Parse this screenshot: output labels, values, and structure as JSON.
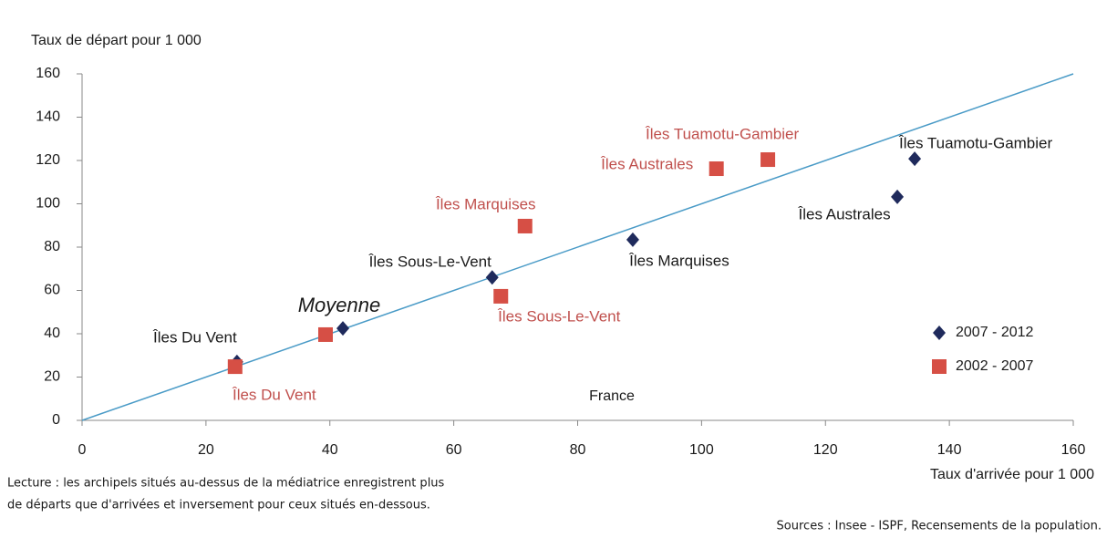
{
  "chart_data": {
    "type": "scatter",
    "title": "Taux de départ pour 1 000",
    "x_label": "Taux d'arrivée pour 1 000",
    "xlim": [
      0,
      160
    ],
    "xticks": [
      0,
      20,
      40,
      60,
      80,
      100,
      120,
      140,
      160
    ],
    "ylim": [
      0,
      160
    ],
    "yticks": [
      0,
      20,
      40,
      60,
      80,
      100,
      120,
      140,
      160
    ],
    "legend": "right",
    "series": [
      {
        "name": "2007 - 2012",
        "color": "#1f2a5c",
        "marker": "diamond",
        "x": [
          25,
          42.1,
          66.2,
          88.9,
          131.6,
          134.4
        ],
        "values": [
          27,
          42.5,
          66,
          83.4,
          103.2,
          120.8
        ],
        "labels": [
          "Îles Du Vent",
          null,
          "Îles Sous-Le-Vent",
          "Îles Marquises",
          "Îles Australes",
          "Îles Tuamotu-Gambier"
        ]
      },
      {
        "name": "2002 - 2007",
        "color": "#d64f45",
        "marker": "square",
        "x": [
          24.7,
          39.3,
          67.6,
          71.5,
          102.4,
          110.7
        ],
        "values": [
          24.8,
          39.6,
          57.3,
          89.7,
          116.2,
          120.4
        ],
        "labels": [
          "Îles Du Vent",
          null,
          "Îles Sous-Le-Vent",
          "Îles Marquises",
          "Îles Australes",
          "Îles Tuamotu-Gambier"
        ]
      }
    ],
    "annotations": [
      "Moyenne",
      "France"
    ],
    "notes": [
      "Lecture : les archipels situés au-dessus de la médiatrice enregistrent plus",
      "de départs que d'arrivées et inversement pour ceux situés en-dessous."
    ],
    "source": "Sources : Insee - ISPF, Recensements de la population."
  }
}
